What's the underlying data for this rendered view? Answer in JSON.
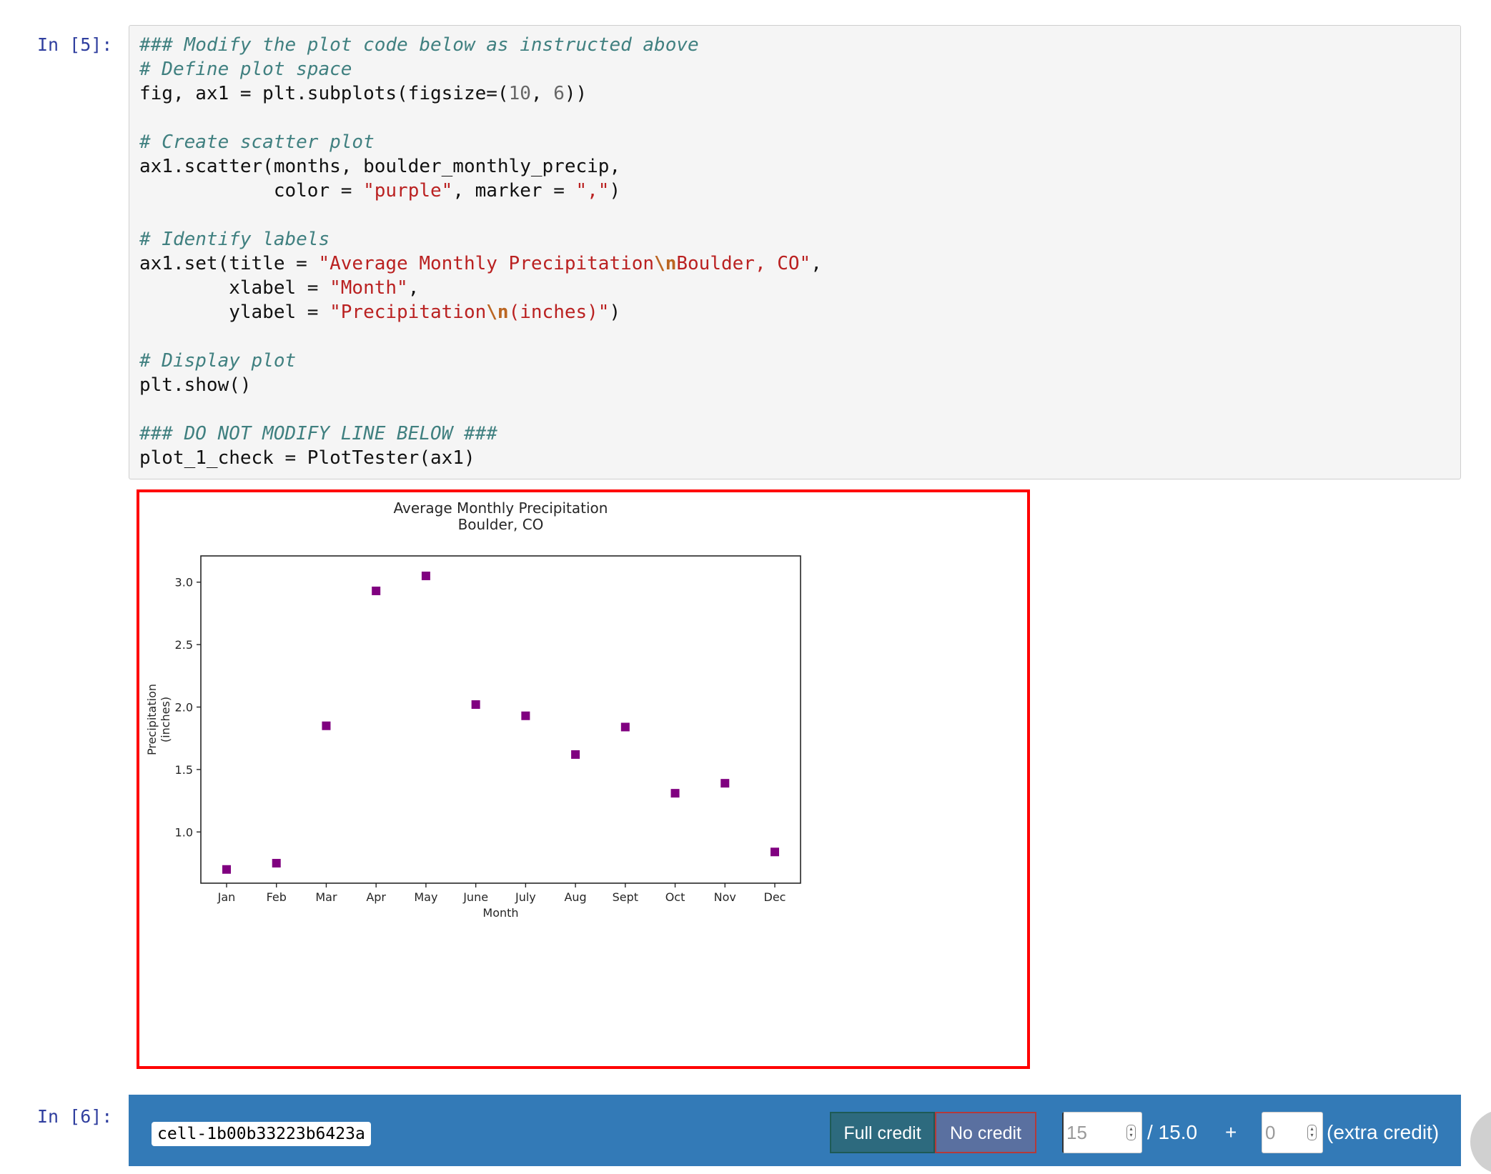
{
  "cells": [
    {
      "prompt": "In [5]:",
      "code_lines": [
        [
          {
            "t": "### Modify the plot code below as instructed above",
            "k": "c"
          }
        ],
        [
          {
            "t": "# Define plot space",
            "k": "c"
          }
        ],
        [
          {
            "t": "fig, ax1 = plt.subplots(figsize=("
          },
          {
            "t": "10",
            "k": "n"
          },
          {
            "t": ", "
          },
          {
            "t": "6",
            "k": "n"
          },
          {
            "t": "))"
          }
        ],
        [],
        [
          {
            "t": "# Create scatter plot",
            "k": "c"
          }
        ],
        [
          {
            "t": "ax1.scatter(months, boulder_monthly_precip,"
          }
        ],
        [
          {
            "t": "            color = "
          },
          {
            "t": "\"purple\"",
            "k": "s"
          },
          {
            "t": ", marker = "
          },
          {
            "t": "\",\"",
            "k": "s"
          },
          {
            "t": ")"
          }
        ],
        [],
        [
          {
            "t": "# Identify labels",
            "k": "c"
          }
        ],
        [
          {
            "t": "ax1.set(title = "
          },
          {
            "t": "\"Average Monthly Precipitation",
            "k": "s"
          },
          {
            "t": "\\n",
            "k": "e"
          },
          {
            "t": "Boulder, CO\"",
            "k": "s"
          },
          {
            "t": ","
          }
        ],
        [
          {
            "t": "        xlabel = "
          },
          {
            "t": "\"Month\"",
            "k": "s"
          },
          {
            "t": ","
          }
        ],
        [
          {
            "t": "        ylabel = "
          },
          {
            "t": "\"Precipitation",
            "k": "s"
          },
          {
            "t": "\\n",
            "k": "e"
          },
          {
            "t": "(inches)\"",
            "k": "s"
          },
          {
            "t": ")"
          }
        ],
        [],
        [
          {
            "t": "# Display plot",
            "k": "c"
          }
        ],
        [
          {
            "t": "plt.show()"
          }
        ],
        [],
        [
          {
            "t": "### DO NOT MODIFY LINE BELOW ###",
            "k": "c"
          }
        ],
        [
          {
            "t": "plot_1_check = PlotTester(ax1)"
          }
        ]
      ]
    },
    {
      "prompt": "In [6]:"
    }
  ],
  "chart_data": {
    "type": "scatter",
    "title": "Average Monthly Precipitation\nBoulder, CO",
    "xlabel": "Month",
    "ylabel": "Precipitation\n(inches)",
    "x": [
      "Jan",
      "Feb",
      "Mar",
      "Apr",
      "May",
      "June",
      "July",
      "Aug",
      "Sept",
      "Oct",
      "Nov",
      "Dec"
    ],
    "y": [
      0.7,
      0.75,
      1.85,
      2.93,
      3.05,
      2.02,
      1.93,
      1.62,
      1.84,
      1.31,
      1.39,
      0.84
    ],
    "yticks": [
      1.0,
      1.5,
      2.0,
      2.5,
      3.0
    ],
    "ylim": [
      0.59,
      3.21
    ],
    "marker": "square",
    "color": "#800080",
    "grid": false
  },
  "grading": {
    "cell_id": "cell-1b00b33223b6423a",
    "full_credit_label": "Full credit",
    "no_credit_label": "No credit",
    "score_value": "15",
    "max_points_label": "/ 15.0",
    "plus_label": "+",
    "extra_value": "0",
    "extra_credit_label": "(extra credit)"
  }
}
